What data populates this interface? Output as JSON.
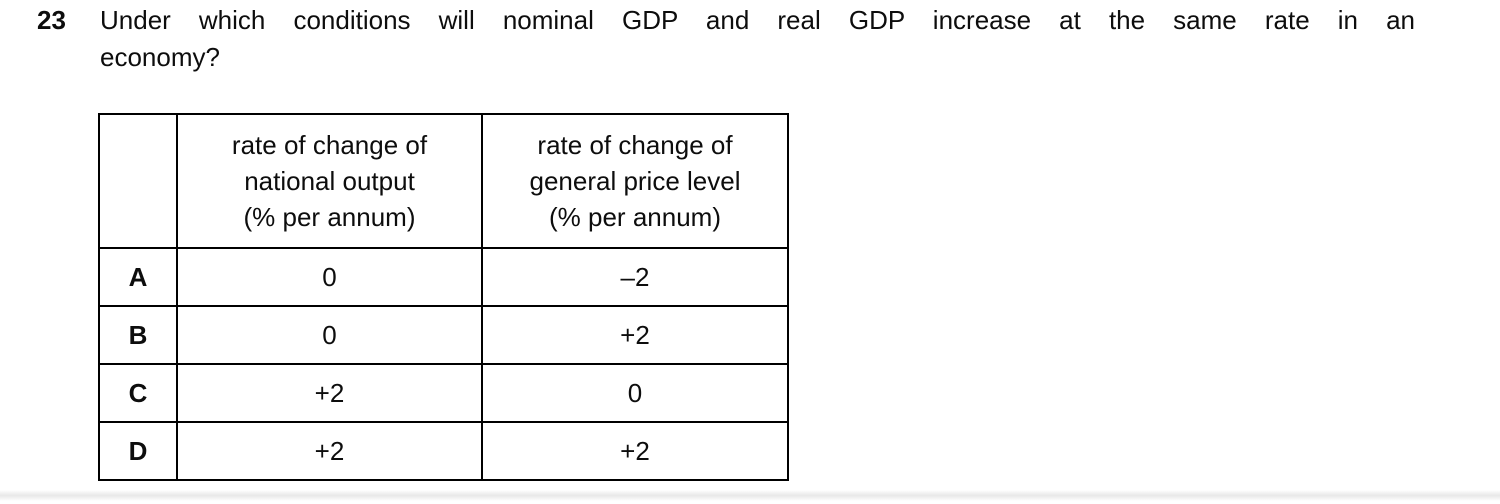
{
  "question": {
    "number": "23",
    "lines": [
      "Under which conditions will nominal GDP and real GDP increase at the same rate in an",
      "economy?"
    ]
  },
  "table": {
    "headers": [
      "",
      "rate of change of\nnational output\n(% per annum)",
      "rate of change of\ngeneral price level\n(% per annum)"
    ],
    "rows": [
      {
        "letter": "A",
        "output": "0",
        "price": "–2"
      },
      {
        "letter": "B",
        "output": "0",
        "price": "+2"
      },
      {
        "letter": "C",
        "output": "+2",
        "price": "0"
      },
      {
        "letter": "D",
        "output": "+2",
        "price": "+2"
      }
    ]
  },
  "colors": {
    "text": "#0d0d0d",
    "border": "#000000",
    "background": "#ffffff"
  }
}
